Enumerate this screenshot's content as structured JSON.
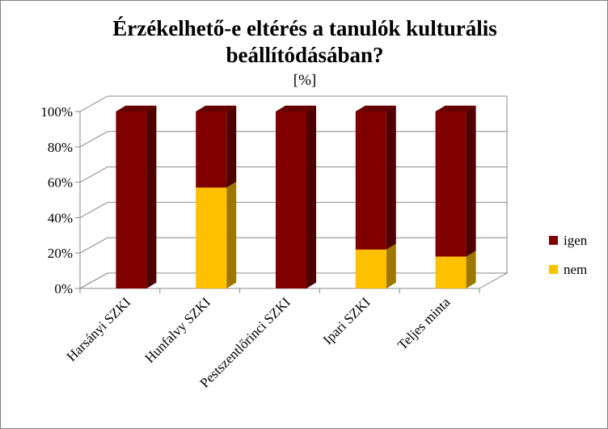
{
  "chart_data": {
    "type": "bar",
    "stacked": true,
    "percent_stacked": true,
    "three_d": true,
    "title_lines": [
      "Érzékelhető-e eltérés a tanulók kulturális",
      "beállítódásában?"
    ],
    "subtitle": "[%]",
    "categories": [
      "Harsányi SZKI",
      "Hunfalvy SZKI",
      "Pestszentlőrinci SZKI",
      "Ipari SZKI",
      "Teljes minta"
    ],
    "series": [
      {
        "name": "nem",
        "color": "#FFC000",
        "values": [
          0,
          57,
          0,
          22,
          18
        ]
      },
      {
        "name": "igen",
        "color": "#800000",
        "values": [
          100,
          43,
          100,
          78,
          82
        ]
      }
    ],
    "yticks": [
      "0%",
      "20%",
      "40%",
      "60%",
      "80%",
      "100%"
    ],
    "ylim": [
      0,
      100
    ],
    "grid": true,
    "legend_position": "right",
    "legend": [
      {
        "name": "igen",
        "color": "#800000"
      },
      {
        "name": "nem",
        "color": "#FFC000"
      }
    ]
  }
}
